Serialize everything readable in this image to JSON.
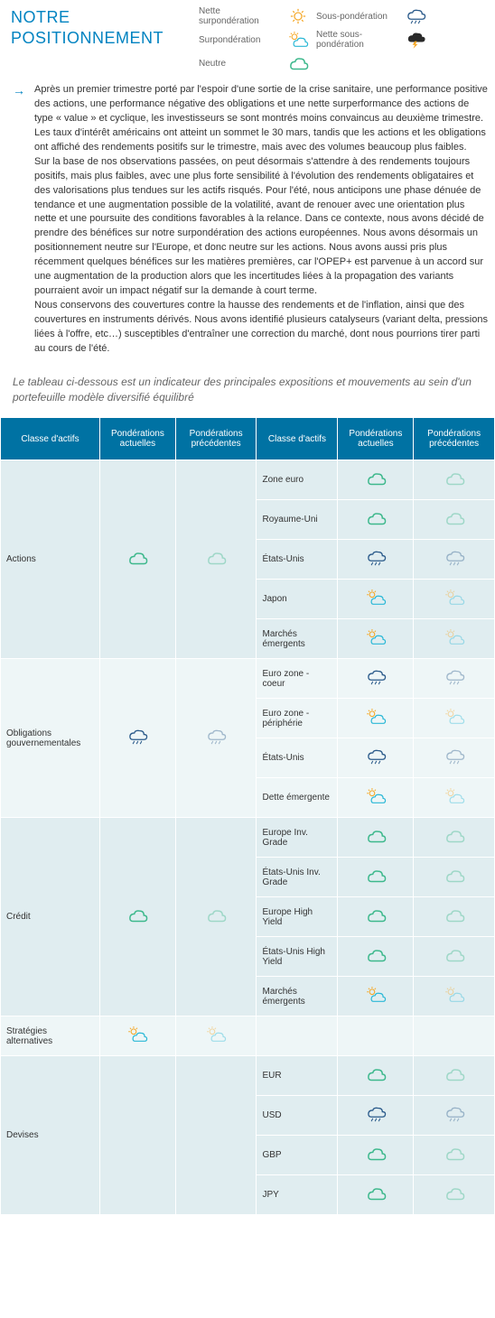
{
  "title": "NOTRE POSITIONNEMENT",
  "legend": {
    "l1": "Nette surpondération",
    "l2": "Surpondération",
    "l3": "Neutre",
    "l4": "Sous-pondération",
    "l5": "Nette sous-pondération"
  },
  "paragraphs": {
    "p1": "Après un premier trimestre porté par l'espoir d'une sortie de la crise sanitaire, une performance positive des actions, une performance négative des obligations et une nette surperformance des actions de type « value » et cyclique, les investisseurs se sont montrés moins convaincus au deuxième trimestre. Les taux d'intérêt américains ont atteint un sommet le 30 mars, tandis que les actions et les obligations ont affiché des rendements positifs sur le trimestre, mais avec des volumes beaucoup plus faibles.",
    "p2": "Sur la base de nos observations passées, on peut désormais s'attendre à des rendements toujours positifs, mais plus faibles, avec une plus forte sensibilité à l'évolution des rendements obligataires et des valorisations plus tendues sur les actifs risqués. Pour l'été, nous anticipons une phase dénuée de tendance et une augmentation possible de la volatilité, avant de renouer avec une orientation plus nette et une poursuite des conditions favorables à la relance. Dans ce contexte, nous avons décidé de prendre des bénéfices sur notre surpondération des actions européennes. Nous avons désormais un positionnement neutre sur l'Europe, et donc neutre sur les actions. Nous avons aussi pris plus récemment quelques bénéfices sur les matières premières, car l'OPEP+ est parvenue à un accord sur une augmentation de la production alors que les incertitudes liées à la propagation des variants pourraient avoir un impact négatif sur la demande à court terme.",
    "p3": "Nous conservons des couvertures contre la hausse des rendements et de l'inflation, ainsi que des couvertures en instruments dérivés. Nous avons identifié plusieurs catalyseurs (variant delta, pressions liées à l'offre, etc…) susceptibles d'entraîner une correction du marché, dont nous pourrions tirer parti au cours de l'été."
  },
  "subtitle": "Le tableau ci-dessous est un indicateur des principales expositions et mouvements au sein d'un portefeuille modèle diversifié équilibré",
  "headers": {
    "h1": "Classe d'actifs",
    "h2": "Pondérations actuelles",
    "h3": "Pondérations précédentes",
    "h4": "Classe d'actifs",
    "h5": "Pondérations actuelles",
    "h6": "Pondérations précédentes"
  },
  "rows": {
    "actions": "Actions",
    "r1": "Zone euro",
    "r2": "Royaume-Uni",
    "r3": "États-Unis",
    "r4": "Japon",
    "r5": "Marchés émergents",
    "oblig": "Obligations gouvernementales",
    "r6": "Euro zone - coeur",
    "r7": "Euro zone - périphérie",
    "r8": "États-Unis",
    "r9": "Dette émergente",
    "credit": "Crédit",
    "r10": "Europe Inv. Grade",
    "r11": "États-Unis Inv. Grade",
    "r12": "Europe High Yield",
    "r13": "États-Unis High Yield",
    "r14": "Marchés émergents",
    "strat": "Stratégies alternatives",
    "devises": "Devises",
    "r15": "EUR",
    "r16": "USD",
    "r17": "GBP",
    "r18": "JPY"
  },
  "colors": {
    "header_bg": "#0072a3",
    "dark_row": "#e0edf0",
    "light_row": "#eef6f7",
    "title": "#0083c1"
  },
  "icons": {
    "sun": {
      "color": "#f5a623"
    },
    "suncloud": {
      "sun": "#f5a623",
      "cloud": "#2bb8d6"
    },
    "green_cloud": {
      "color": "#3db88c"
    },
    "blue_rain": {
      "color": "#2a5a8a"
    },
    "storm": {
      "color": "#2a2a2a"
    }
  }
}
